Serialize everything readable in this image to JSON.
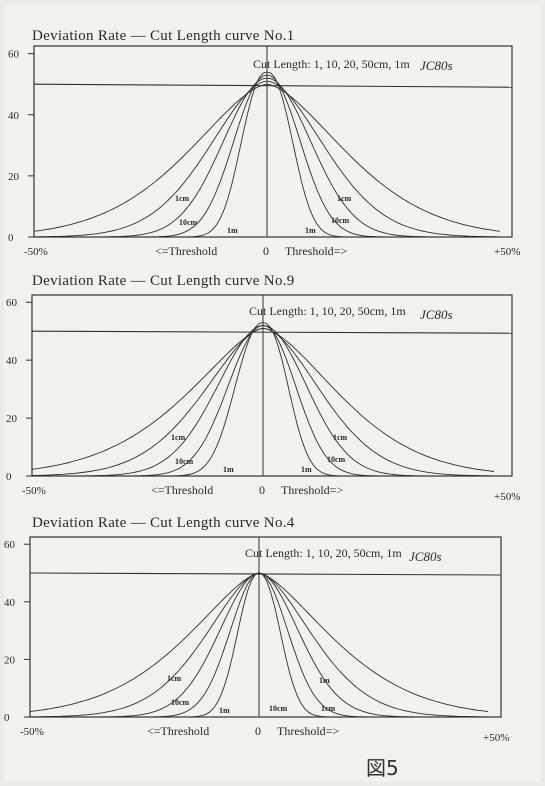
{
  "figure": {
    "label": "図5"
  },
  "chart_data": [
    {
      "type": "line",
      "title": "Deviation Rate — Cut Length curve No.1",
      "note": "JC80s",
      "series_caption": "Cut Length: 1, 10, 20, 50cm, 1m",
      "xlabel_left": "<=Threshold",
      "xlabel_center": "0",
      "xlabel_right": "Threshold=>",
      "x_tick_labels": [
        "-50%",
        "+50%"
      ],
      "y_tick_labels": [
        "60",
        "40",
        "20",
        "0"
      ],
      "xlim": [
        -50,
        50
      ],
      "ylim": [
        0,
        60
      ],
      "threshold_y": 50,
      "series_labels_left": [
        "1cm",
        "10cm",
        "1m"
      ],
      "series_labels_right": [
        "1cm",
        "10cm",
        "1m"
      ],
      "series": [
        {
          "name": "1cm",
          "peak": 50,
          "left_width": 28,
          "right_width": 28,
          "left_shape": 1.6,
          "right_shape": 1.6
        },
        {
          "name": "10cm",
          "peak": 51,
          "left_width": 20,
          "right_width": 20,
          "left_shape": 1.8,
          "right_shape": 1.8
        },
        {
          "name": "20cm",
          "peak": 52,
          "left_width": 15,
          "right_width": 15,
          "left_shape": 2.0,
          "right_shape": 2.0
        },
        {
          "name": "50cm",
          "peak": 53,
          "left_width": 11,
          "right_width": 11,
          "left_shape": 2.1,
          "right_shape": 2.1
        },
        {
          "name": "1m",
          "peak": 54,
          "left_width": 8,
          "right_width": 8,
          "left_shape": 2.3,
          "right_shape": 2.3
        }
      ]
    },
    {
      "type": "line",
      "title": "Deviation Rate — Cut Length curve No.9",
      "note": "JC80s",
      "series_caption": "Cut Length: 1, 10, 20, 50cm, 1m",
      "xlabel_left": "<=Threshold",
      "xlabel_center": "0",
      "xlabel_right": "Threshold=>",
      "x_tick_labels": [
        "-50%",
        "+50%"
      ],
      "y_tick_labels": [
        "60",
        "40",
        "20",
        "0"
      ],
      "xlim": [
        -50,
        50
      ],
      "ylim": [
        0,
        60
      ],
      "threshold_y": 50,
      "series_labels_left": [
        "1cm",
        "10cm",
        "1m"
      ],
      "series_labels_right": [
        "1cm",
        "10cm",
        "1m"
      ],
      "series": [
        {
          "name": "1cm",
          "peak": 51,
          "left_width": 28,
          "right_width": 27,
          "left_shape": 1.5,
          "right_shape": 1.6
        },
        {
          "name": "10cm",
          "peak": 51,
          "left_width": 21,
          "right_width": 20,
          "left_shape": 1.7,
          "right_shape": 1.8
        },
        {
          "name": "20cm",
          "peak": 52,
          "left_width": 16,
          "right_width": 15,
          "left_shape": 1.9,
          "right_shape": 2.0
        },
        {
          "name": "50cm",
          "peak": 52,
          "left_width": 12,
          "right_width": 11,
          "left_shape": 2.0,
          "right_shape": 2.1
        },
        {
          "name": "1m",
          "peak": 53,
          "left_width": 9,
          "right_width": 8,
          "left_shape": 2.2,
          "right_shape": 2.3
        }
      ]
    },
    {
      "type": "line",
      "title": "Deviation Rate — Cut Length curve No.4",
      "note": "JC80s",
      "series_caption": "Cut Length: 1, 10, 20, 50cm, 1m",
      "xlabel_left": "<=Threshold",
      "xlabel_center": "0",
      "xlabel_right": "Threshold=>",
      "x_tick_labels": [
        "-50%",
        "+50%"
      ],
      "y_tick_labels": [
        "60",
        "40",
        "20",
        "0"
      ],
      "xlim": [
        -50,
        50
      ],
      "ylim": [
        0,
        60
      ],
      "threshold_y": 50,
      "series_labels_left": [
        "1cm",
        "10cm",
        "1m"
      ],
      "series_labels_right": [
        "1m",
        "1cm",
        "10cm"
      ],
      "series": [
        {
          "name": "1cm",
          "peak": 50,
          "left_width": 27,
          "right_width": 27,
          "left_shape": 1.5,
          "right_shape": 1.5
        },
        {
          "name": "10cm",
          "peak": 50,
          "left_width": 19,
          "right_width": 19,
          "left_shape": 1.7,
          "right_shape": 1.7
        },
        {
          "name": "20cm",
          "peak": 50,
          "left_width": 14,
          "right_width": 14,
          "left_shape": 1.9,
          "right_shape": 1.9
        },
        {
          "name": "50cm",
          "peak": 50,
          "left_width": 10,
          "right_width": 10,
          "left_shape": 2.0,
          "right_shape": 2.0
        },
        {
          "name": "1m",
          "peak": 50,
          "left_width": 7,
          "right_width": 7,
          "left_shape": 2.2,
          "right_shape": 2.2
        }
      ]
    }
  ]
}
